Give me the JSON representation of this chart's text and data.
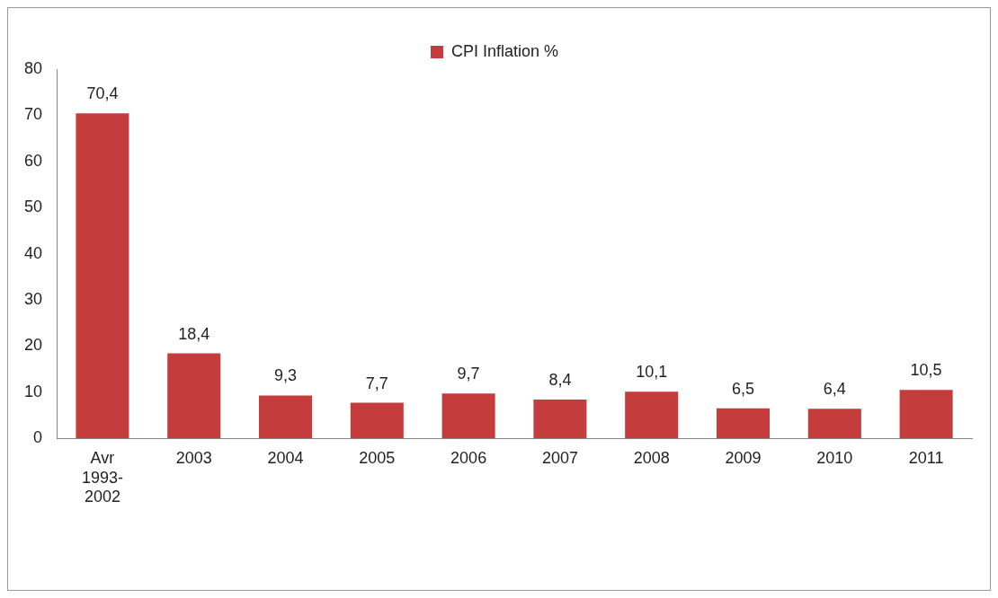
{
  "chart_data": {
    "type": "bar",
    "categories": [
      "Avr 1993-2002",
      "2003",
      "2004",
      "2005",
      "2006",
      "2007",
      "2008",
      "2009",
      "2010",
      "2011"
    ],
    "series": [
      {
        "name": "CPI Inflation %",
        "color": "#c43c3c",
        "values": [
          70.4,
          18.4,
          9.3,
          7.7,
          9.7,
          8.4,
          10.1,
          6.5,
          6.4,
          10.5
        ],
        "value_labels": [
          "70,4",
          "18,4",
          "9,3",
          "7,7",
          "9,7",
          "8,4",
          "10,1",
          "6,5",
          "6,4",
          "10,5"
        ]
      }
    ],
    "ylim": [
      0,
      80
    ],
    "yticks": [
      0,
      10,
      20,
      30,
      40,
      50,
      60,
      70,
      80
    ],
    "grid": false,
    "legend": "top"
  }
}
